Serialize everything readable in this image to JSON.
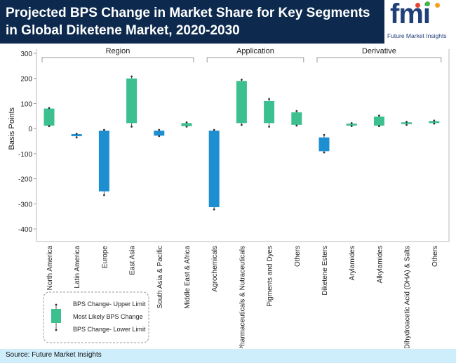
{
  "header": {
    "title": "Projected BPS Change in Market Share for Key Segments in Global Diketene Market, 2020-2030"
  },
  "logo": {
    "text": "fmi",
    "subtitle": "Future Market Insights"
  },
  "footer": {
    "source": "Source: Future Market Insights"
  },
  "colors": {
    "header_bg": "#0d2a4e",
    "increase_box": "#3cc08f",
    "decrease_box": "#1d8fd1",
    "footer_bg": "#cfeefc"
  },
  "chart_data": {
    "type": "box",
    "ylabel": "Basis Points",
    "ylim": [
      -450,
      300
    ],
    "yticks": [
      300,
      200,
      100,
      0,
      -100,
      -200,
      -300,
      -400
    ],
    "grid": false,
    "groups": [
      {
        "label": "Region",
        "categories": [
          "North America",
          "Latin America",
          "Europe",
          "East Asia",
          "South Asia & Pacific",
          "Middle East & Africa"
        ]
      },
      {
        "label": "Application",
        "categories": [
          "Agrochemicals",
          "Pharmaceuticals & Nutraceuticals",
          "Pigments and Dyes",
          "Others"
        ]
      },
      {
        "label": "Derivative",
        "categories": [
          "Diketene Esters",
          "Arylamides",
          "Alkylamides",
          "Dihydroacetic Acid (DHA) & Salts",
          "Others"
        ]
      }
    ],
    "series": [
      {
        "category": "North America",
        "lower": 10,
        "box_low": 12,
        "box_high": 80,
        "upper": 82,
        "direction": "up"
      },
      {
        "category": "Latin America",
        "lower": -35,
        "box_low": -30,
        "box_high": -22,
        "upper": -20,
        "direction": "down"
      },
      {
        "category": "Europe",
        "lower": -265,
        "box_low": -250,
        "box_high": -8,
        "upper": -5,
        "direction": "down"
      },
      {
        "category": "East Asia",
        "lower": 8,
        "box_low": 22,
        "box_high": 200,
        "upper": 208,
        "direction": "up"
      },
      {
        "category": "South Asia & Pacific",
        "lower": -30,
        "box_low": -28,
        "box_high": -8,
        "upper": -5,
        "direction": "down"
      },
      {
        "category": "Middle East & Africa",
        "lower": 8,
        "box_low": 10,
        "box_high": 22,
        "upper": 25,
        "direction": "up"
      },
      {
        "category": "Agrochemicals",
        "lower": -322,
        "box_low": -313,
        "box_high": -8,
        "upper": -5,
        "direction": "down"
      },
      {
        "category": "Pharmaceuticals & Nutraceuticals",
        "lower": 15,
        "box_low": 22,
        "box_high": 190,
        "upper": 195,
        "direction": "up"
      },
      {
        "category": "Pigments and Dyes",
        "lower": 8,
        "box_low": 22,
        "box_high": 110,
        "upper": 118,
        "direction": "up"
      },
      {
        "category": "Others",
        "lower": 12,
        "box_low": 15,
        "box_high": 65,
        "upper": 70,
        "direction": "up"
      },
      {
        "category": "Diketene Esters",
        "lower": -95,
        "box_low": -90,
        "box_high": -35,
        "upper": -25,
        "direction": "down"
      },
      {
        "category": "Arylamides",
        "lower": 10,
        "box_low": 12,
        "box_high": 20,
        "upper": 22,
        "direction": "up"
      },
      {
        "category": "Alkylamides",
        "lower": 10,
        "box_low": 12,
        "box_high": 48,
        "upper": 52,
        "direction": "up"
      },
      {
        "category": "Dihydroacetic Acid (DHA) & Salts",
        "lower": 15,
        "box_low": 18,
        "box_high": 25,
        "upper": 27,
        "direction": "up"
      },
      {
        "category": "Others",
        "lower": 20,
        "box_low": 22,
        "box_high": 30,
        "upper": 32,
        "direction": "up"
      }
    ],
    "legend": {
      "position": "bottom-left",
      "entries": [
        "BPS Change- Upper Limit",
        "Most Likely BPS Change",
        "BPS Change- Lower Limit"
      ]
    }
  }
}
